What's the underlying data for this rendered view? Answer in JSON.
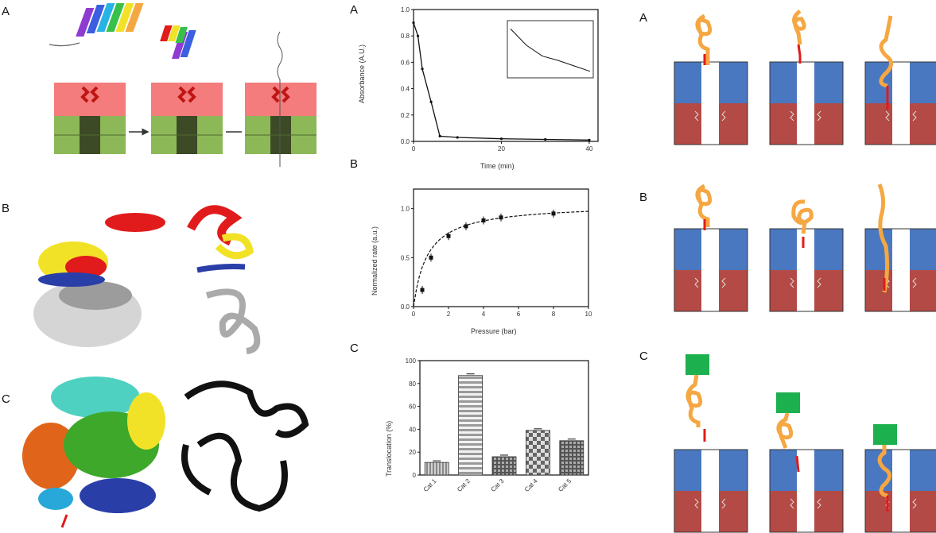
{
  "labels": {
    "left_a": "A",
    "left_b": "B",
    "left_c": "C",
    "mid_a": "A",
    "mid_b": "B",
    "mid_c": "C",
    "right_a": "A",
    "right_b": "B",
    "right_c": "C"
  },
  "colors": {
    "membrane_upper": "#f47c7c",
    "membrane_lower": "#8db858",
    "pore_blue": "#4a78c0",
    "pore_red": "#b34a45",
    "chain_orange": "#f5a742",
    "green_block": "#1db04e",
    "helix_red": "#e11b1b",
    "helix_yellow": "#f2e227",
    "helix_blue": "#2a3ea8"
  },
  "chart_data": [
    {
      "type": "line",
      "title": "",
      "xlabel": "Time (min)",
      "ylabel": "Absorbance (A.U.)",
      "x": [
        0,
        1,
        2,
        4,
        6,
        10,
        20,
        30,
        40
      ],
      "y": [
        0.9,
        0.8,
        0.55,
        0.3,
        0.04,
        0.03,
        0.02,
        0.015,
        0.01
      ],
      "xticks": [
        "0",
        "20",
        "40"
      ],
      "yticks": [
        "0.0",
        "0.2",
        "0.4",
        "0.6",
        "0.8",
        "1.0"
      ],
      "xlim": [
        0,
        42
      ],
      "ylim": [
        0,
        1.0
      ],
      "inset": {
        "x": [
          0,
          1,
          2,
          3,
          4,
          5
        ],
        "y": [
          0.9,
          0.6,
          0.4,
          0.32,
          0.22,
          0.12
        ]
      }
    },
    {
      "type": "scatter",
      "title": "",
      "xlabel": "Pressure (bar)",
      "ylabel": "Normalized rate (a.u.)",
      "x": [
        0.5,
        1,
        2,
        3,
        4,
        5,
        8
      ],
      "y": [
        0.17,
        0.5,
        0.72,
        0.82,
        0.88,
        0.91,
        0.95
      ],
      "xticks": [
        "0",
        "2",
        "4",
        "6",
        "8",
        "10"
      ],
      "yticks": [
        "0.0",
        "0.5",
        "1.0"
      ],
      "xlim": [
        0,
        10
      ],
      "ylim": [
        0,
        1.2
      ]
    },
    {
      "type": "bar",
      "title": "",
      "xlabel": "",
      "ylabel": "Translocation (%)",
      "categories": [
        "Cat 1",
        "Cat 2",
        "Cat 3",
        "Cat 4",
        "Cat 5"
      ],
      "values": [
        11,
        87,
        16,
        39,
        30
      ],
      "yticks": [
        "0",
        "20",
        "40",
        "60",
        "80",
        "100"
      ],
      "ylim": [
        0,
        100
      ]
    }
  ]
}
